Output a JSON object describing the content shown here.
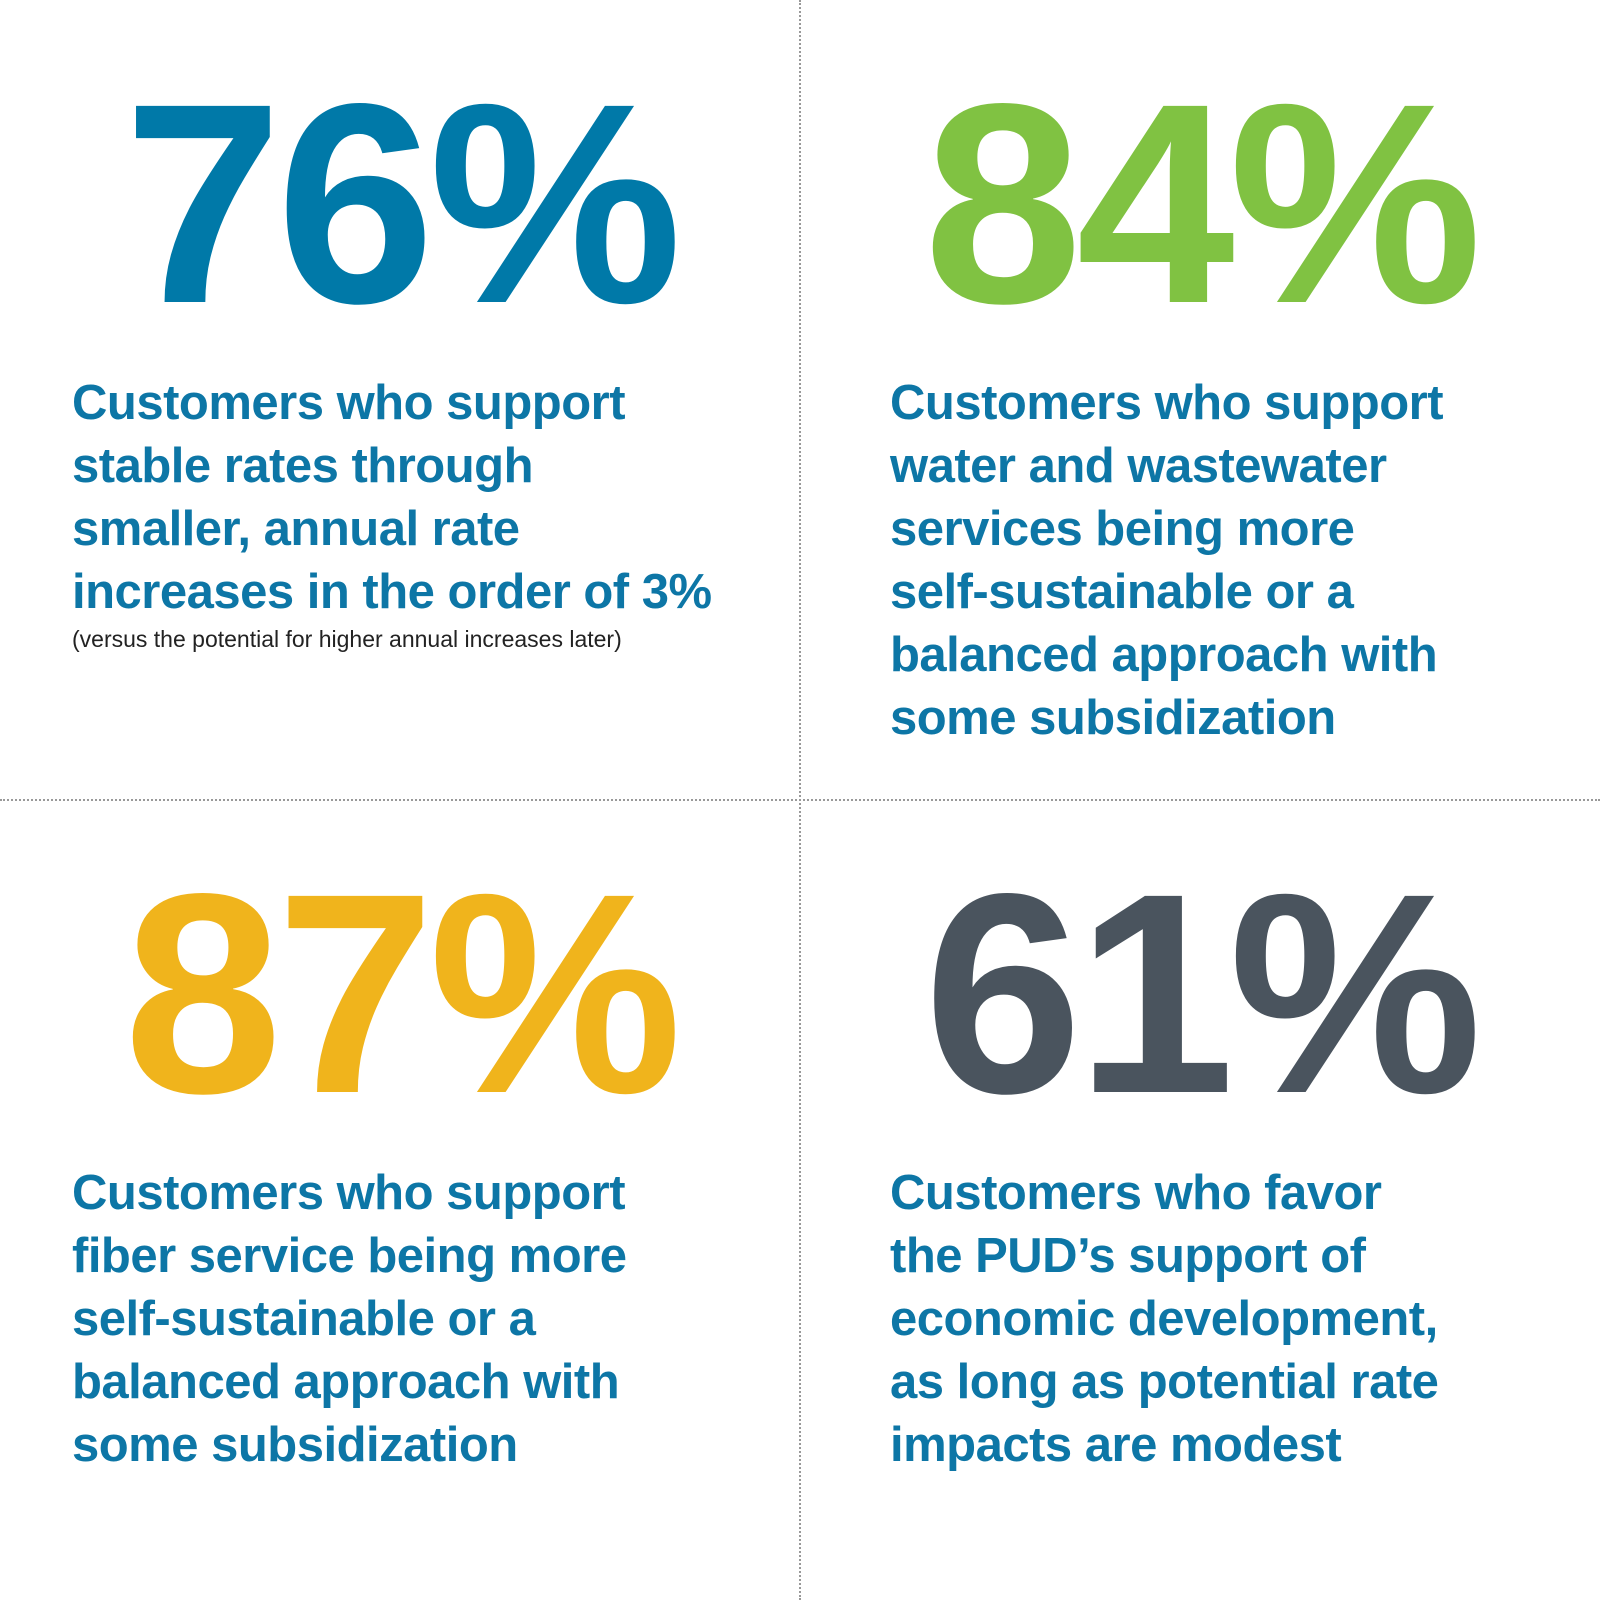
{
  "panels": [
    {
      "stat": "76%",
      "lines": [
        "Customers who support",
        "stable rates through",
        "smaller, annual rate",
        "increases in the order of 3%"
      ],
      "note": "(versus the potential for higher annual increases later)"
    },
    {
      "stat": "84%",
      "lines": [
        "Customers who support",
        "water and wastewater",
        "services being more",
        "self-sustainable or a",
        "balanced approach with",
        "some subsidization"
      ]
    },
    {
      "stat": "87%",
      "lines": [
        "Customers who support",
        "fiber service being more",
        "self-sustainable or a",
        "balanced approach with",
        "some subsidization"
      ]
    },
    {
      "stat": "61%",
      "lines": [
        "Customers who favor",
        "the PUD’s support of",
        "economic development,",
        "as long as potential rate",
        "impacts are modest"
      ]
    }
  ]
}
